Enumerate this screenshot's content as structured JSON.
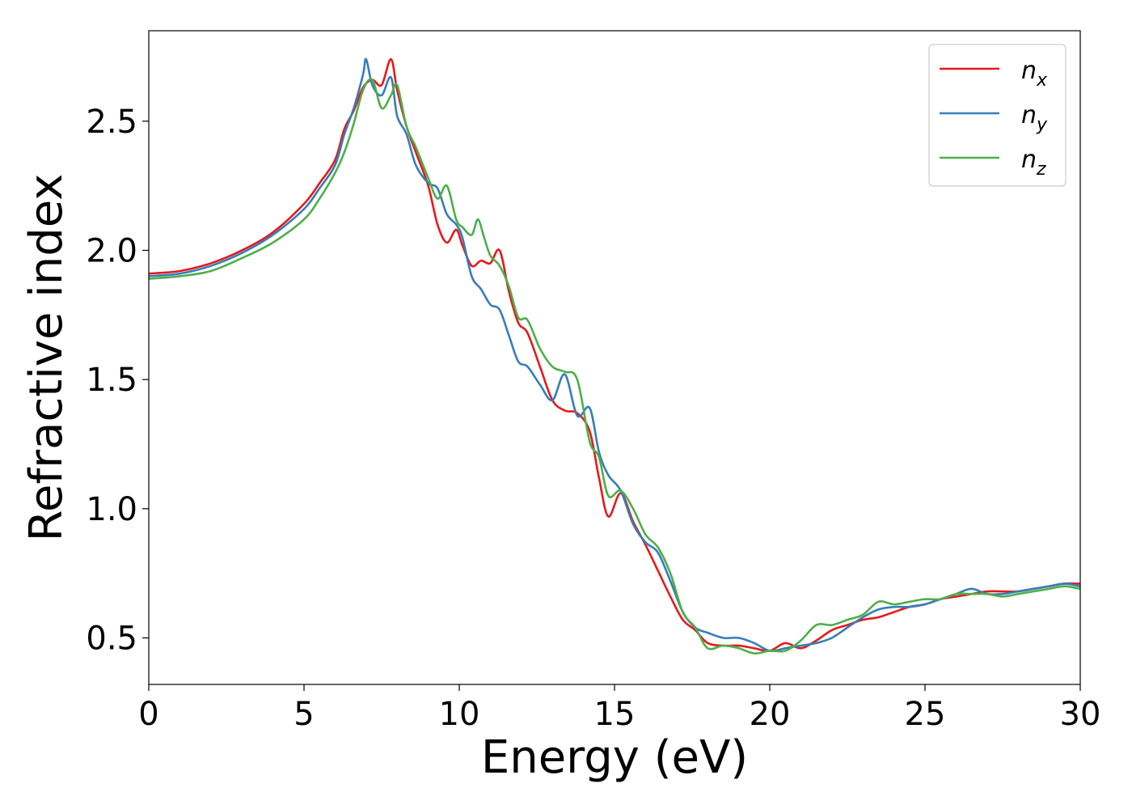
{
  "chart_data": {
    "type": "line",
    "title": "",
    "xlabel": "Energy (eV)",
    "ylabel": "Refractive index",
    "xlim": [
      0,
      30
    ],
    "ylim": [
      0.32,
      2.85
    ],
    "xticks": [
      0,
      5,
      10,
      15,
      20,
      25,
      30
    ],
    "xtick_labels": [
      "0",
      "5",
      "10",
      "15",
      "20",
      "25",
      "30"
    ],
    "yticks": [
      0.5,
      1.0,
      1.5,
      2.0,
      2.5
    ],
    "ytick_labels": [
      "0.5",
      "1.0",
      "1.5",
      "2.0",
      "2.5"
    ],
    "grid": false,
    "legend_position": "top-right",
    "series": [
      {
        "name": "n_x",
        "legend_base": "n",
        "legend_sub": "x",
        "color": "#e41a1c",
        "x": [
          0,
          1,
          2,
          3,
          4,
          5,
          5.5,
          6,
          6.3,
          6.6,
          6.9,
          7.2,
          7.5,
          7.8,
          8.0,
          8.3,
          8.6,
          9.0,
          9.3,
          9.6,
          9.9,
          10.1,
          10.4,
          10.7,
          11.0,
          11.3,
          11.6,
          11.9,
          12.2,
          12.6,
          13.0,
          13.4,
          13.8,
          14.2,
          14.5,
          14.8,
          15.2,
          15.6,
          16.0,
          16.4,
          16.8,
          17.2,
          17.6,
          18.0,
          18.5,
          19.0,
          19.5,
          20.0,
          20.5,
          21.0,
          21.5,
          22.0,
          22.5,
          23.0,
          23.5,
          24.0,
          24.5,
          25.0,
          25.5,
          26.0,
          26.5,
          27.0,
          27.5,
          28.0,
          28.5,
          29.0,
          29.5,
          30.0
        ],
        "y": [
          1.91,
          1.92,
          1.95,
          2.0,
          2.07,
          2.18,
          2.26,
          2.35,
          2.47,
          2.54,
          2.63,
          2.66,
          2.64,
          2.74,
          2.62,
          2.48,
          2.38,
          2.25,
          2.1,
          2.03,
          2.08,
          2.02,
          1.94,
          1.96,
          1.95,
          2.0,
          1.84,
          1.72,
          1.68,
          1.55,
          1.42,
          1.38,
          1.37,
          1.3,
          1.12,
          0.97,
          1.06,
          0.95,
          0.86,
          0.76,
          0.66,
          0.57,
          0.53,
          0.48,
          0.47,
          0.47,
          0.46,
          0.45,
          0.48,
          0.46,
          0.49,
          0.53,
          0.55,
          0.57,
          0.58,
          0.6,
          0.62,
          0.63,
          0.65,
          0.66,
          0.67,
          0.68,
          0.68,
          0.68,
          0.69,
          0.7,
          0.71,
          0.71
        ]
      },
      {
        "name": "n_y",
        "legend_base": "n",
        "legend_sub": "y",
        "color": "#377eb8",
        "x": [
          0,
          1,
          2,
          3,
          4,
          5,
          5.5,
          6,
          6.3,
          6.6,
          6.9,
          7.0,
          7.2,
          7.5,
          7.8,
          8.0,
          8.3,
          8.6,
          9.0,
          9.3,
          9.6,
          9.9,
          10.1,
          10.4,
          10.7,
          11.0,
          11.3,
          11.6,
          11.9,
          12.2,
          12.6,
          13.0,
          13.4,
          13.8,
          14.2,
          14.5,
          14.8,
          15.2,
          15.6,
          16.0,
          16.4,
          16.8,
          17.2,
          17.6,
          18.0,
          18.5,
          19.0,
          19.5,
          20.0,
          20.5,
          21.0,
          21.5,
          22.0,
          22.5,
          23.0,
          23.5,
          24.0,
          24.5,
          25.0,
          25.5,
          26.0,
          26.5,
          27.0,
          27.5,
          28.0,
          28.5,
          29.0,
          29.5,
          30.0
        ],
        "y": [
          1.9,
          1.91,
          1.94,
          1.99,
          2.06,
          2.16,
          2.24,
          2.33,
          2.45,
          2.55,
          2.68,
          2.74,
          2.64,
          2.6,
          2.67,
          2.52,
          2.45,
          2.33,
          2.26,
          2.24,
          2.14,
          2.1,
          2.05,
          1.9,
          1.85,
          1.79,
          1.77,
          1.67,
          1.57,
          1.55,
          1.48,
          1.42,
          1.52,
          1.36,
          1.39,
          1.22,
          1.13,
          1.07,
          0.94,
          0.87,
          0.83,
          0.72,
          0.6,
          0.54,
          0.52,
          0.5,
          0.5,
          0.48,
          0.45,
          0.46,
          0.47,
          0.48,
          0.5,
          0.54,
          0.58,
          0.61,
          0.62,
          0.62,
          0.63,
          0.65,
          0.67,
          0.69,
          0.67,
          0.67,
          0.68,
          0.69,
          0.7,
          0.71,
          0.7
        ]
      },
      {
        "name": "n_z",
        "legend_base": "n",
        "legend_sub": "z",
        "color": "#4daf4a",
        "x": [
          0,
          1,
          2,
          3,
          4,
          5,
          5.5,
          6,
          6.3,
          6.6,
          6.9,
          7.2,
          7.5,
          7.8,
          8.0,
          8.3,
          8.6,
          9.0,
          9.3,
          9.6,
          9.9,
          10.1,
          10.4,
          10.6,
          10.8,
          11.0,
          11.3,
          11.6,
          11.9,
          12.2,
          12.6,
          13.0,
          13.4,
          13.8,
          14.2,
          14.5,
          14.8,
          15.2,
          15.6,
          16.0,
          16.4,
          16.8,
          17.2,
          17.6,
          18.0,
          18.5,
          19.0,
          19.5,
          20.0,
          20.5,
          21.0,
          21.5,
          22.0,
          22.5,
          23.0,
          23.5,
          24.0,
          24.5,
          25.0,
          25.5,
          26.0,
          26.5,
          27.0,
          27.5,
          28.0,
          28.5,
          29.0,
          29.5,
          30.0
        ],
        "y": [
          1.89,
          1.9,
          1.92,
          1.97,
          2.03,
          2.12,
          2.2,
          2.3,
          2.38,
          2.49,
          2.62,
          2.66,
          2.55,
          2.6,
          2.64,
          2.48,
          2.4,
          2.28,
          2.2,
          2.25,
          2.12,
          2.09,
          2.06,
          2.12,
          2.05,
          1.98,
          1.94,
          1.86,
          1.74,
          1.73,
          1.62,
          1.55,
          1.53,
          1.5,
          1.26,
          1.2,
          1.05,
          1.07,
          1.0,
          0.9,
          0.85,
          0.75,
          0.6,
          0.54,
          0.46,
          0.47,
          0.46,
          0.44,
          0.45,
          0.45,
          0.49,
          0.55,
          0.55,
          0.57,
          0.59,
          0.64,
          0.63,
          0.64,
          0.65,
          0.65,
          0.67,
          0.67,
          0.67,
          0.66,
          0.67,
          0.68,
          0.69,
          0.7,
          0.69
        ]
      }
    ]
  }
}
